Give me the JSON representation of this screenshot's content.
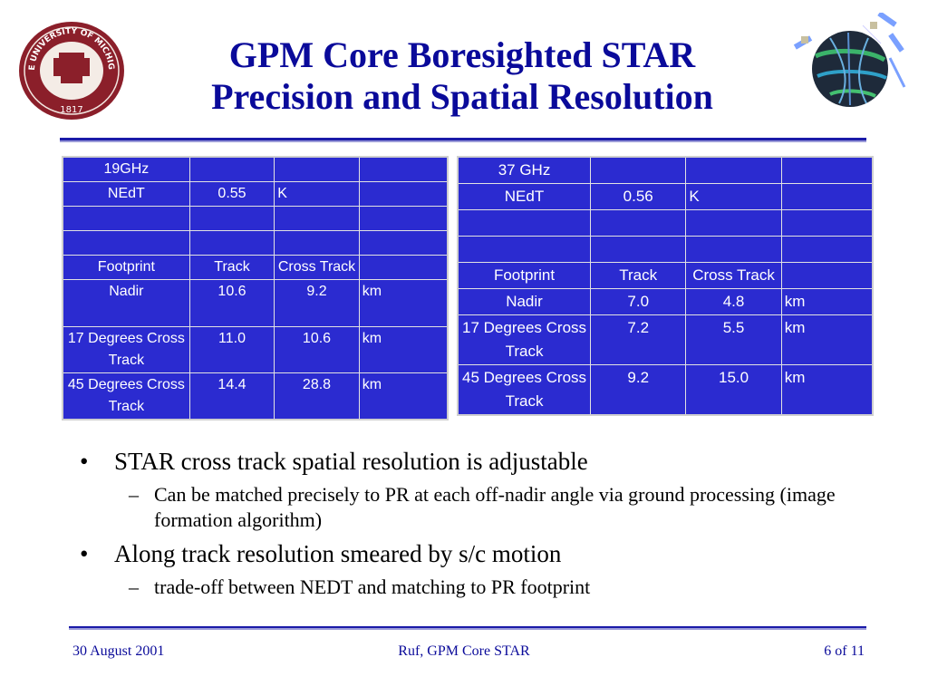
{
  "slide": {
    "title_line1": "GPM Core Boresighted STAR",
    "title_line2": "Precision and Spatial Resolution"
  },
  "seal": {
    "text": "THE UNIVERSITY OF MICHIGAN",
    "year": "1817"
  },
  "table_19": {
    "rows": [
      [
        "19GHz",
        "",
        "",
        ""
      ],
      [
        "NEdT",
        "0.55",
        "K",
        ""
      ],
      [
        "",
        "",
        "",
        ""
      ],
      [
        "",
        "",
        "",
        ""
      ],
      [
        "Footprint",
        "Track",
        "Cross Track",
        ""
      ],
      [
        "Nadir",
        "10.6",
        "9.2",
        "km"
      ],
      [
        "17 Degrees Cross  Track",
        "11.0",
        "10.6",
        "km"
      ],
      [
        "45 Degrees Cross  Track",
        "14.4",
        "28.8",
        "km"
      ]
    ]
  },
  "table_37": {
    "rows": [
      [
        "37 GHz",
        "",
        "",
        ""
      ],
      [
        "NEdT",
        "0.56",
        "K",
        ""
      ],
      [
        "",
        "",
        "",
        ""
      ],
      [
        "",
        "",
        "",
        ""
      ],
      [
        "Footprint",
        "Track",
        "Cross Track",
        ""
      ],
      [
        "Nadir",
        "7.0",
        "4.8",
        "km"
      ],
      [
        "17 Degrees Cross  Track",
        "7.2",
        "5.5",
        "km"
      ],
      [
        "45 Degrees Cross  Track",
        "9.2",
        "15.0",
        "km"
      ]
    ]
  },
  "bullets": [
    {
      "text": "STAR cross track spatial resolution is adjustable",
      "sub": [
        "Can be matched precisely to PR at each off-nadir angle via ground processing (image formation algorithm)"
      ]
    },
    {
      "text": "Along track resolution smeared by s/c motion",
      "sub": [
        "trade-off between NEDT and matching to PR footprint"
      ]
    }
  ],
  "markers": {
    "bullet": "•",
    "dash": "–"
  },
  "footer": {
    "date": "30 August 2001",
    "center": "Ruf, GPM Core STAR",
    "page": "6 of 11"
  },
  "colors": {
    "title": "#0a0a9a",
    "table_bg": "#2b2bd0",
    "seal": "#8b1f2a"
  }
}
